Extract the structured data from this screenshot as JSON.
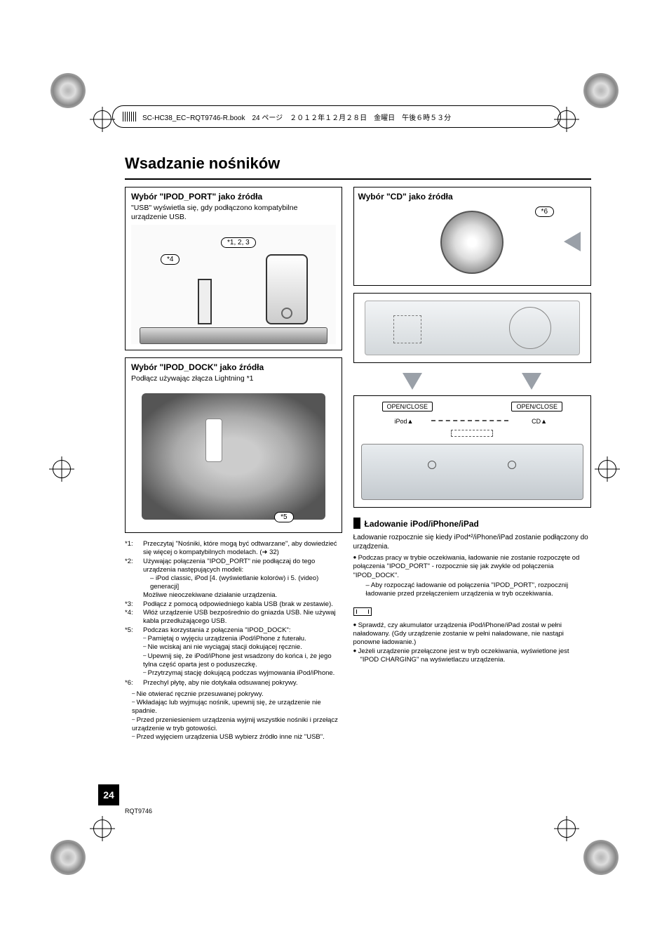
{
  "header_strip": "SC-HC38_EC~RQT9746-R.book　24 ページ　２０１２年１２月２８日　金曜日　午後６時５３分",
  "title": "Wsadzanie nośników",
  "left": {
    "panel1": {
      "heading": "Wybór \"IPOD_PORT\" jako źródła",
      "sub": "\"USB\" wyświetla się, gdy podłączono kompatybilne urządzenie USB.",
      "callout_a": "*1, 2, 3",
      "callout_b": "*4"
    },
    "panel2": {
      "heading": "Wybór \"IPOD_DOCK\" jako źródła",
      "sub": "Podłącz używając złącza Lightning *1",
      "callout": "*5"
    }
  },
  "right": {
    "panel_top": {
      "heading": "Wybór \"CD\" jako źródła",
      "callout": "*6"
    },
    "open_close": "OPEN/CLOSE",
    "btn_ipod": "iPod",
    "btn_cd": "CD"
  },
  "footnotes": [
    {
      "key": "*1:",
      "text": "Przeczytaj \"Nośniki, które mogą być odtwarzane\", aby dowiedzieć się więcej o kompatybilnych modelach. (➜ 32)"
    },
    {
      "key": "*2:",
      "text": "Używając połączenia \"IPOD_PORT\" nie podłączaj do tego urządzenia następujących modeli:",
      "sub": [
        "iPod classic, iPod [4. (wyświetlanie kolorów) i 5. (video) generacji]"
      ],
      "tail": "Możliwe nieoczekiwane działanie urządzenia."
    },
    {
      "key": "*3:",
      "text": "Podłącz z pomocą odpowiedniego kabla USB (brak w zestawie)."
    },
    {
      "key": "*4:",
      "text": "Włóż urządzenie USB bezpośrednio do gniazda USB. Nie używaj kabla przedłużającego USB."
    },
    {
      "key": "*5:",
      "text": "Podczas korzystania z połączenia \"IPOD_DOCK\":",
      "bullets": [
        "Pamiętaj o wyjęciu urządzenia iPod/iPhone z futerału.",
        "Nie wciskaj ani nie wyciągaj stacji dokującej ręcznie.",
        "Upewnij się, że iPod/iPhone jest wsadzony do końca i, że jego tylna część oparta jest o poduszeczkę.",
        "Przytrzymaj stację dokującą podczas wyjmowania iPod/iPhone."
      ]
    },
    {
      "key": "*6:",
      "text": "Przechyl płytę, aby nie dotykała odsuwanej pokrywy."
    }
  ],
  "left_closing_bullets": [
    "Nie otwierać ręcznie przesuwanej pokrywy.",
    "Wkładając lub wyjmując nośnik, upewnij się, że urządzenie nie spadnie.",
    "Przed przeniesieniem urządzenia wyjmij wszystkie nośniki i przełącz urządzenie w tryb gotowości.",
    "Przed wyjęciem urządzenia USB wybierz źródło inne niż \"USB\"."
  ],
  "charging": {
    "heading": "Ładowanie iPod/iPhone/iPad",
    "intro": "Ładowanie rozpocznie się kiedy iPod*²/iPhone/iPad zostanie podłączony do urządzenia.",
    "bullets": [
      "Podczas pracy w trybie oczekiwania, ładowanie nie zostanie rozpoczęte od połączenia \"IPOD_PORT\" - rozpocznie się jak zwykle od połączenia \"IPOD_DOCK\"."
    ],
    "sub_dash": "Aby rozpocząć ładowanie od połączenia \"IPOD_PORT\", rozpocznij ładowanie przed przełączeniem urządzenia w tryb oczekiwania.",
    "note_bullets": [
      "Sprawdź, czy akumulator urządzenia iPod/iPhone/iPad został w pełni naładowany. (Gdy urządzenie zostanie w pełni naładowane, nie nastąpi ponowne ładowanie.)",
      "Jeżeli urządzenie przełączone jest w tryb oczekiwania, wyświetlone jest"
    ],
    "note_tail": "\"IPOD CHARGING\" na wyświetlaczu urządzenia."
  },
  "page_number": "24",
  "doc_code": "RQT9746",
  "colors": {
    "text": "#000000",
    "bg": "#ffffff",
    "grey_arrow": "#9aa0a8"
  }
}
